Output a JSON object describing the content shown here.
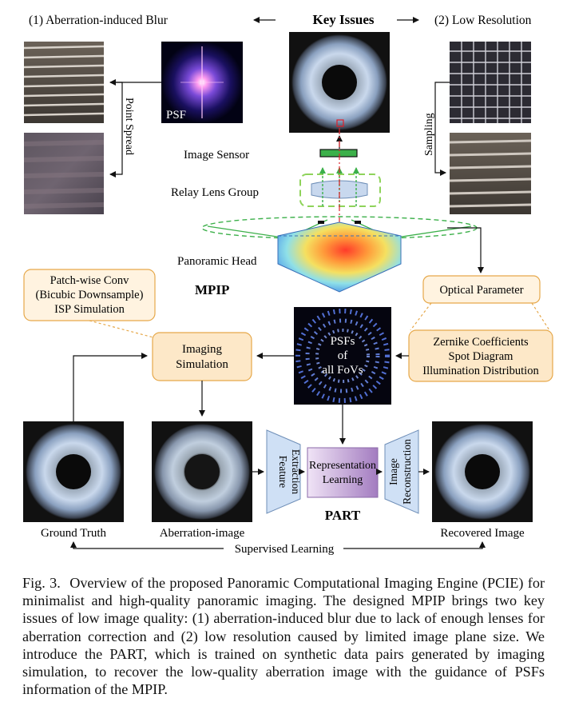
{
  "figure": {
    "key_issues_title": "Key Issues",
    "issue1_label": "(1) Aberration-induced Blur",
    "issue2_label": "(2) Low Resolution",
    "psf_label": "PSF",
    "point_spread_label": "Point Spread",
    "sampling_label": "Sampling",
    "image_sensor_label": "Image Sensor",
    "relay_lens_label": "Relay Lens Group",
    "panoramic_head_label": "Panoramic Head",
    "mpip_label": "MPIP",
    "patchwise_box": [
      "Patch-wise Conv",
      "(Bicubic Downsample)",
      "ISP Simulation"
    ],
    "imaging_sim_box": [
      "Imaging",
      "Simulation"
    ],
    "optical_param_box": "Optical Parameter",
    "zernike_box": [
      "Zernike Coefficients",
      "Spot Diagram",
      "Illumination Distribution"
    ],
    "psfs_box": [
      "PSFs",
      "of",
      "all FoVs"
    ],
    "feature_extraction_label": [
      "Feature",
      "Extraction"
    ],
    "representation_learning_label": [
      "Representation",
      "Learning"
    ],
    "image_reconstruction_label": [
      "Image",
      "Reconstruction"
    ],
    "part_label": "PART",
    "ground_truth_label": "Ground Truth",
    "aberration_image_label": "Aberration-image",
    "recovered_image_label": "Recovered Image",
    "supervised_learning_label": "Supervised Learning"
  },
  "caption": {
    "label": "Fig. 3.",
    "text": "Overview of the proposed Panoramic Computational Imaging Engine (PCIE) for minimalist and high-quality panoramic imaging. The designed MPIP brings two key issues of low image quality: (1) aberration-induced blur due to lack of enough lenses for aberration correction and (2) low resolution caused by limited image plane size. We introduce the PART, which is trained on synthetic data pairs generated by imaging simulation, to recover the low-quality aberration image with the guidance of PSFs information of the MPIP."
  },
  "colors": {
    "accent_green": "#3cb04a",
    "accent_red": "#e0202a",
    "box_fill_orange": "#fde8c8",
    "box_border_orange": "#e6a84a",
    "trapezoid_blue": "#cfe0f5",
    "purple_box": "#c8b0d8"
  }
}
